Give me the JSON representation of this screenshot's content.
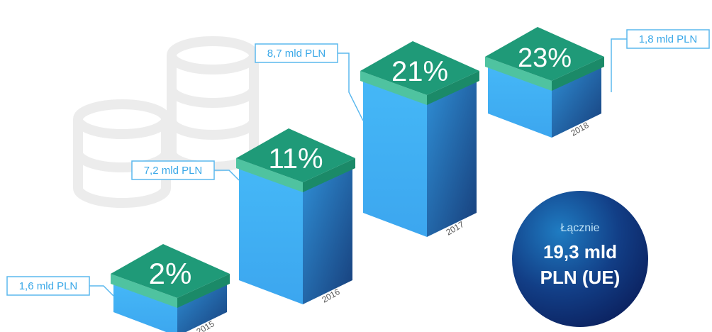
{
  "chart_data": {
    "type": "bar",
    "categories": [
      "2015",
      "2016",
      "2017",
      "2018"
    ],
    "series": [
      {
        "values": [
          2,
          11,
          21,
          23
        ]
      }
    ],
    "value_labels": [
      "2%",
      "11%",
      "21%",
      "23%"
    ],
    "amount_labels": [
      "1,6 mld PLN",
      "7,2 mld PLN",
      "8,7 mld PLN",
      "1,8 mld PLN"
    ]
  },
  "total": {
    "label": "Łącznie",
    "value_line1": "19,3 mld",
    "value_line2": "PLN (UE)"
  },
  "icons": [
    "coin-stack-icon"
  ],
  "colors": {
    "bar_front": "#42b4f5",
    "bar_top": "#1f9a78",
    "label": "#3aa8e8",
    "circle": "#0d2a6e"
  }
}
